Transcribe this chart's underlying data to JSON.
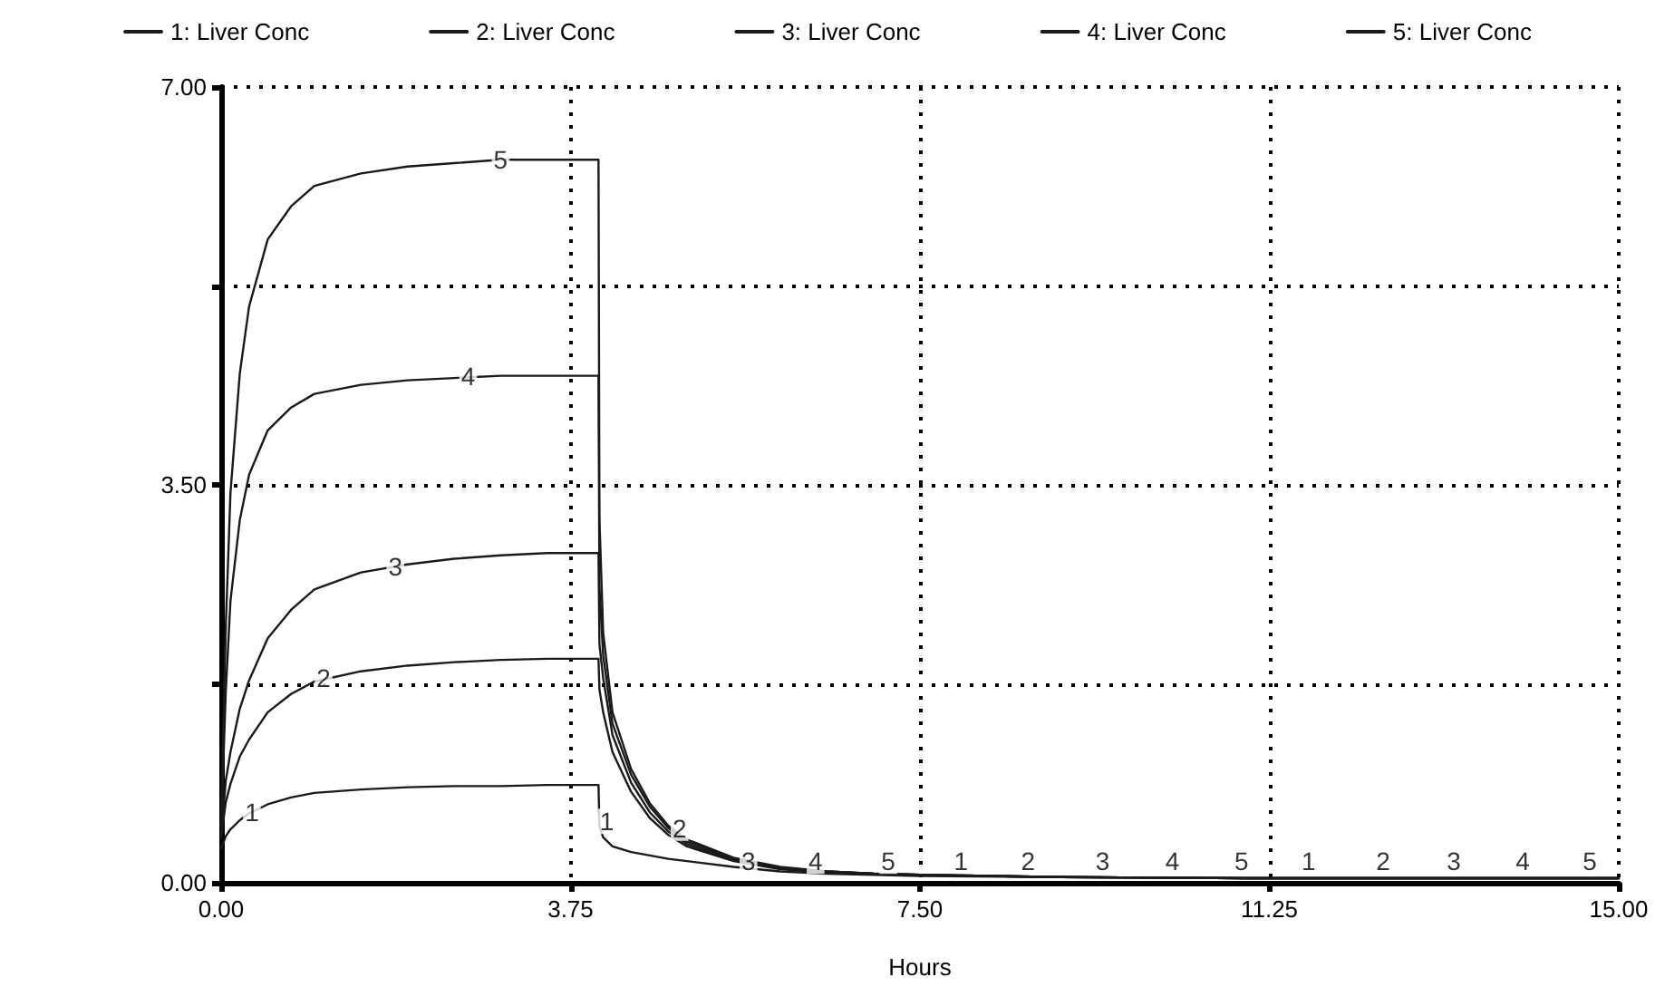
{
  "chart_data": {
    "type": "line",
    "xlabel": "Hours",
    "x": [
      0,
      0.05,
      0.1,
      0.2,
      0.3,
      0.5,
      0.75,
      1,
      1.5,
      2,
      2.5,
      3,
      3.5,
      3.75,
      4.05,
      4.06,
      4.1,
      4.2,
      4.4,
      4.6,
      4.8,
      5,
      5.5,
      6,
      6.5,
      7,
      7.5,
      9,
      11,
      13,
      15
    ],
    "series": [
      {
        "name": "1: Liver Conc",
        "color": "#1a1a1a",
        "values": [
          0.3,
          0.41,
          0.47,
          0.55,
          0.61,
          0.69,
          0.75,
          0.79,
          0.82,
          0.84,
          0.85,
          0.85,
          0.86,
          0.86,
          0.86,
          0.5,
          0.4,
          0.32,
          0.27,
          0.24,
          0.21,
          0.19,
          0.14,
          0.1,
          0.08,
          0.07,
          0.06,
          0.05,
          0.04,
          0.04,
          0.04
        ]
      },
      {
        "name": "2: Liver Conc",
        "color": "#1a1a1a",
        "values": [
          0.4,
          0.71,
          0.87,
          1.11,
          1.26,
          1.5,
          1.66,
          1.77,
          1.86,
          1.91,
          1.94,
          1.96,
          1.97,
          1.97,
          1.97,
          1.7,
          1.5,
          1.15,
          0.8,
          0.57,
          0.42,
          0.32,
          0.19,
          0.12,
          0.09,
          0.08,
          0.07,
          0.05,
          0.04,
          0.04,
          0.04
        ]
      },
      {
        "name": "3: Liver Conc",
        "color": "#1a1a1a",
        "values": [
          0.4,
          0.9,
          1.15,
          1.53,
          1.78,
          2.15,
          2.4,
          2.58,
          2.73,
          2.8,
          2.85,
          2.88,
          2.9,
          2.9,
          2.9,
          2.1,
          1.8,
          1.3,
          0.88,
          0.62,
          0.45,
          0.34,
          0.2,
          0.13,
          0.1,
          0.08,
          0.07,
          0.05,
          0.04,
          0.04,
          0.04
        ]
      },
      {
        "name": "4: Liver Conc",
        "color": "#1a1a1a",
        "values": [
          0.5,
          1.69,
          2.48,
          3.19,
          3.59,
          3.98,
          4.18,
          4.3,
          4.38,
          4.42,
          4.44,
          4.46,
          4.46,
          4.46,
          4.46,
          2.6,
          2.0,
          1.4,
          0.95,
          0.67,
          0.48,
          0.36,
          0.21,
          0.13,
          0.1,
          0.08,
          0.07,
          0.05,
          0.04,
          0.04,
          0.04
        ]
      },
      {
        "name": "5: Liver Conc",
        "color": "#1a1a1a",
        "values": [
          0.5,
          2.26,
          3.43,
          4.48,
          5.07,
          5.66,
          5.95,
          6.13,
          6.24,
          6.3,
          6.33,
          6.36,
          6.36,
          6.36,
          6.36,
          3.2,
          2.2,
          1.5,
          1.0,
          0.7,
          0.5,
          0.38,
          0.22,
          0.14,
          0.1,
          0.08,
          0.07,
          0.05,
          0.04,
          0.04,
          0.04
        ]
      }
    ],
    "xlim": [
      0,
      15
    ],
    "xticks": [
      {
        "value": 0,
        "label": "0.00"
      },
      {
        "value": 3.75,
        "label": "3.75"
      },
      {
        "value": 7.5,
        "label": "7.50"
      },
      {
        "value": 11.25,
        "label": "11.25"
      },
      {
        "value": 15,
        "label": "15.00"
      }
    ],
    "ylim": [
      0,
      7
    ],
    "yticks": [
      {
        "value": 0,
        "label": "0.00"
      },
      {
        "value": 1.75,
        "label": null
      },
      {
        "value": 3.5,
        "label": "3.50"
      },
      {
        "value": 5.25,
        "label": null
      },
      {
        "value": 7,
        "label": "7.00"
      }
    ],
    "grid": true,
    "legend": "top",
    "marker": "none",
    "line_style": "solid",
    "annotations": [
      {
        "text": "1",
        "x": 0.33,
        "y": 0.62
      },
      {
        "text": "2",
        "x": 1.1,
        "y": 1.8
      },
      {
        "text": "3",
        "x": 1.87,
        "y": 2.78
      },
      {
        "text": "4",
        "x": 2.65,
        "y": 4.46
      },
      {
        "text": "5",
        "x": 3.0,
        "y": 6.36
      },
      {
        "text": "1",
        "x": 4.14,
        "y": 0.54
      },
      {
        "text": "2",
        "x": 4.92,
        "y": 0.48
      },
      {
        "text": "3",
        "x": 5.66,
        "y": 0.19
      },
      {
        "text": "4",
        "x": 6.38,
        "y": 0.19
      },
      {
        "text": "5",
        "x": 7.16,
        "y": 0.19
      },
      {
        "text": "1",
        "x": 7.94,
        "y": 0.19
      },
      {
        "text": "2",
        "x": 8.66,
        "y": 0.19
      },
      {
        "text": "3",
        "x": 9.46,
        "y": 0.19
      },
      {
        "text": "4",
        "x": 10.21,
        "y": 0.19
      },
      {
        "text": "5",
        "x": 10.95,
        "y": 0.19
      },
      {
        "text": "1",
        "x": 11.67,
        "y": 0.19
      },
      {
        "text": "2",
        "x": 12.47,
        "y": 0.19
      },
      {
        "text": "3",
        "x": 13.23,
        "y": 0.19
      },
      {
        "text": "4",
        "x": 13.97,
        "y": 0.19
      },
      {
        "text": "5",
        "x": 14.69,
        "y": 0.19
      }
    ]
  }
}
